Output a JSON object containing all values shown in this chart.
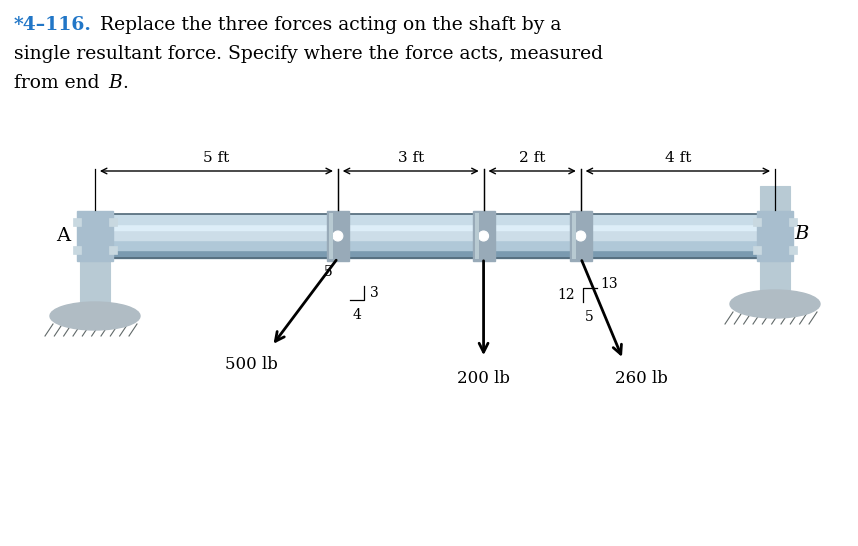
{
  "title_number": "*4–116.",
  "title_number_color": "#2176c7",
  "title_line1": "Replace the three forces acting on the shaft by a",
  "title_line2": "single resultant force. Specify where the force acts, measured",
  "title_line3_pre": "from end ",
  "title_line3_B": "B",
  "title_line3_post": ".",
  "bg_color": "#ffffff",
  "dim_5ft": "5 ft",
  "dim_3ft": "3 ft",
  "dim_2ft": "2 ft",
  "dim_4ft": "4 ft",
  "label_A": "A",
  "label_B": "B",
  "force1_label": "500 lb",
  "force2_label": "200 lb",
  "force3_label": "260 lb",
  "r1_hyp": "5",
  "r1_vert": "3",
  "r1_horiz": "4",
  "r2_vert": "12",
  "r2_hyp": "13",
  "r2_horiz": "5",
  "title_fontsize": 13.5,
  "label_fontsize": 14,
  "dim_fontsize": 11,
  "force_fontsize": 12,
  "ratio_fontsize": 10
}
